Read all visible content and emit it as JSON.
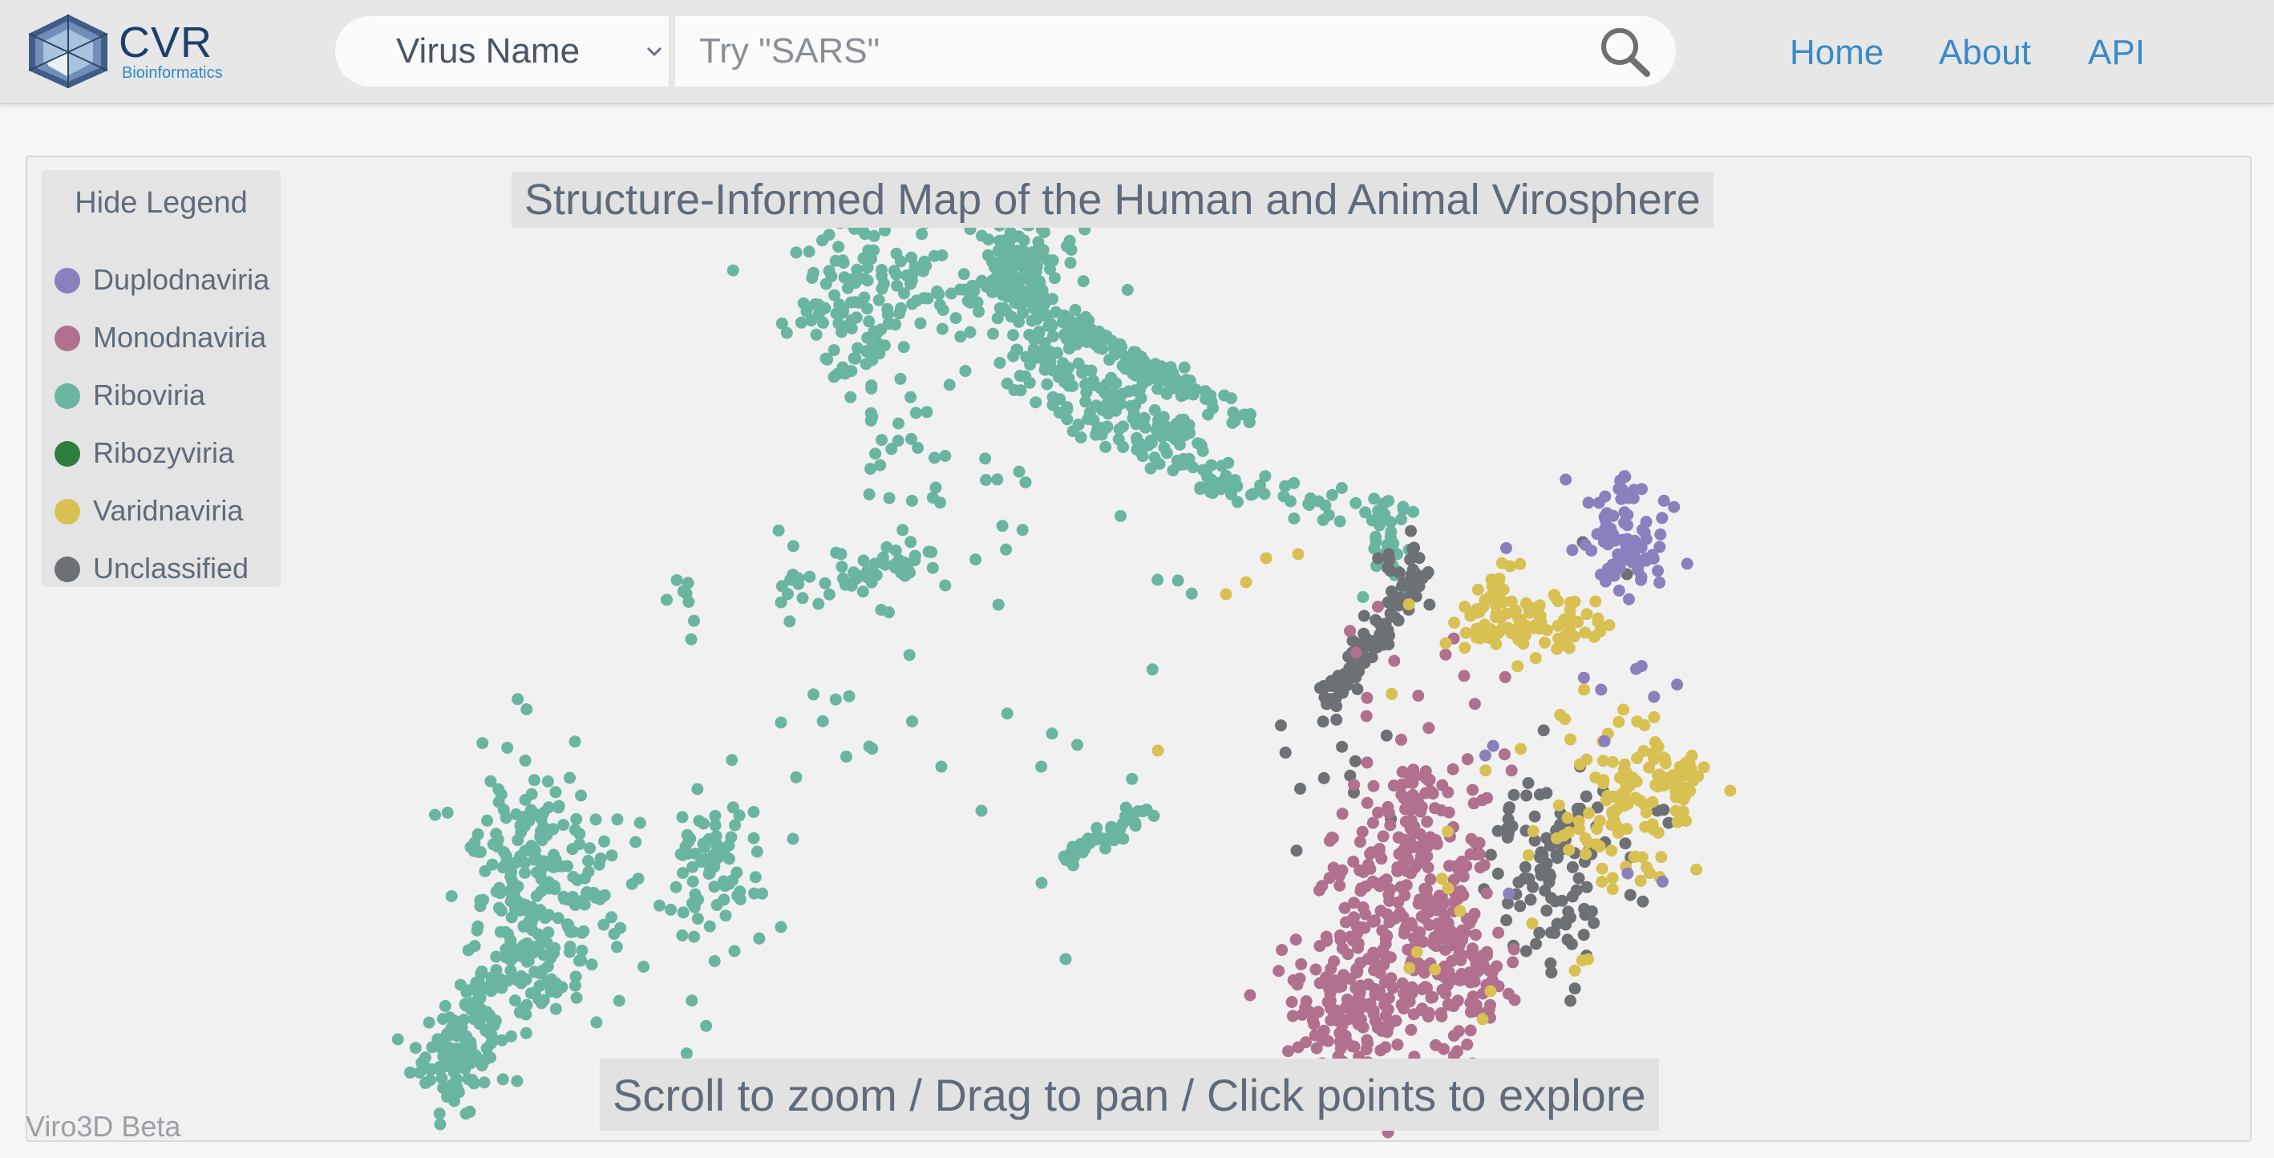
{
  "header": {
    "logo": {
      "name": "CVR",
      "subtitle": "Bioinformatics"
    },
    "search": {
      "type_label": "Virus Name",
      "placeholder": "Try \"SARS\"",
      "value": ""
    },
    "nav": [
      {
        "label": "Home"
      },
      {
        "label": "About"
      },
      {
        "label": "API"
      }
    ]
  },
  "map": {
    "title": "Structure-Informed Map of the Human and Animal Virosphere",
    "legend_toggle": "Hide Legend",
    "legend": [
      {
        "label": "Duplodnaviria",
        "color": "#8b7fbe"
      },
      {
        "label": "Monodnaviria",
        "color": "#b0708e"
      },
      {
        "label": "Riboviria",
        "color": "#6ab5a1"
      },
      {
        "label": "Ribozyviria",
        "color": "#2e7d3e"
      },
      {
        "label": "Varidnaviria",
        "color": "#d9c053"
      },
      {
        "label": "Unclassified",
        "color": "#6d7074"
      }
    ],
    "hint": {
      "zoom": "Scroll to zoom",
      "pan": "Drag to pan",
      "explore": "Click points to explore",
      "separator": " / "
    }
  },
  "footer": {
    "beta": "Viro3D Beta"
  }
}
